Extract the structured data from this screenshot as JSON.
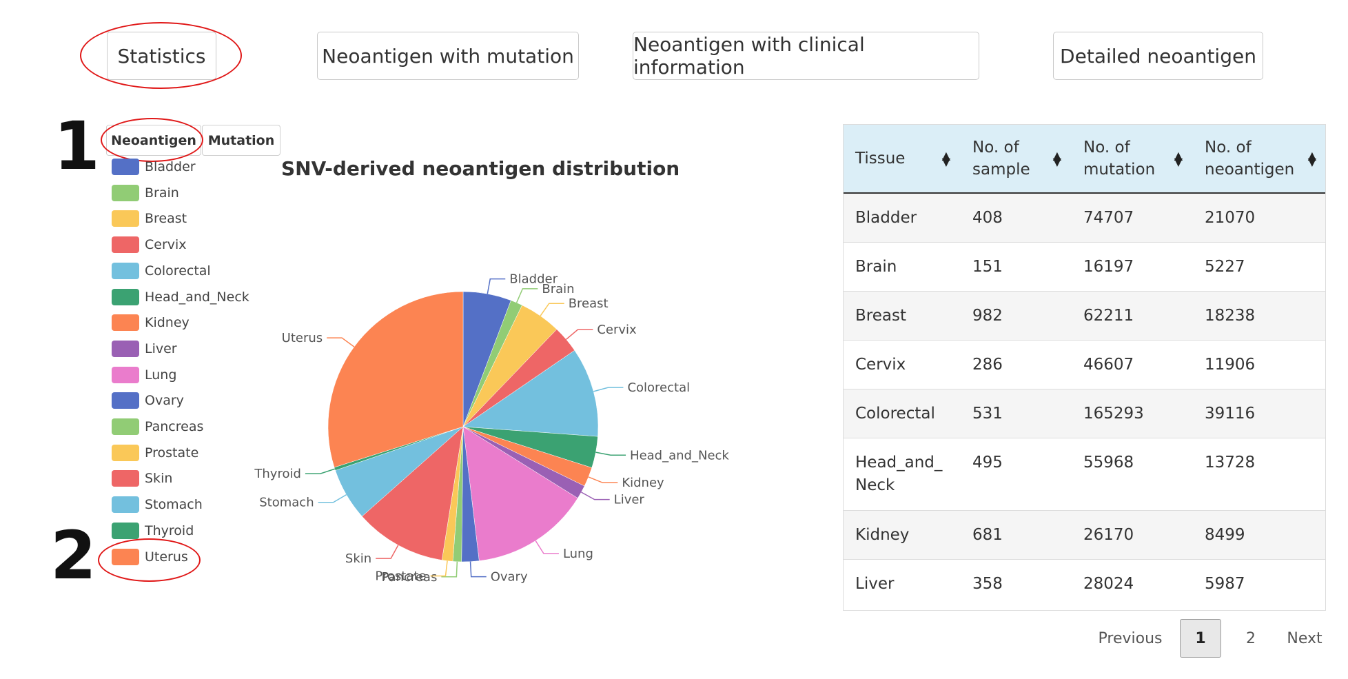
{
  "nav": {
    "buttons": [
      "Statistics",
      "Neoantigen with mutation",
      "Neoantigen with clinical information",
      "Detailed neoantigen"
    ]
  },
  "annotations": {
    "step1": "1",
    "step2": "2"
  },
  "subtabs": [
    "Neoantigen",
    "Mutation"
  ],
  "legend": [
    "Bladder",
    "Brain",
    "Breast",
    "Cervix",
    "Colorectal",
    "Head_and_Neck",
    "Kidney",
    "Liver",
    "Lung",
    "Ovary",
    "Pancreas",
    "Prostate",
    "Skin",
    "Stomach",
    "Thyroid",
    "Uterus"
  ],
  "colors": [
    "#5470c6",
    "#91cc75",
    "#fac858",
    "#ee6666",
    "#73c0de",
    "#3ba272",
    "#fc8452",
    "#9a60b4",
    "#ea7ccc",
    "#5470c6",
    "#91cc75",
    "#fac858",
    "#ee6666",
    "#73c0de",
    "#3ba272",
    "#fc8452"
  ],
  "chart_data": {
    "type": "pie",
    "title": "SNV-derived neoantigen distribution",
    "categories": [
      "Bladder",
      "Brain",
      "Breast",
      "Cervix",
      "Colorectal",
      "Head_and_Neck",
      "Kidney",
      "Liver",
      "Lung",
      "Ovary",
      "Pancreas",
      "Prostate",
      "Skin",
      "Stomach",
      "Thyroid",
      "Uterus"
    ],
    "values": [
      21070,
      5227,
      18238,
      11906,
      39116,
      13728,
      8499,
      5987,
      52000,
      7600,
      3800,
      4700,
      40000,
      23000,
      1400,
      109125
    ],
    "legend_position": "left"
  },
  "table": {
    "headers": [
      [
        "Tissue"
      ],
      [
        "No. of",
        "sample"
      ],
      [
        "No. of",
        "mutation"
      ],
      [
        "No. of",
        "neoantigen"
      ]
    ],
    "rows": [
      [
        "Bladder",
        "408",
        "74707",
        "21070"
      ],
      [
        "Brain",
        "151",
        "16197",
        "5227"
      ],
      [
        "Breast",
        "982",
        "62211",
        "18238"
      ],
      [
        "Cervix",
        "286",
        "46607",
        "11906"
      ],
      [
        "Colorectal",
        "531",
        "165293",
        "39116"
      ],
      [
        "Head_and_Neck",
        "495",
        "55968",
        "13728"
      ],
      [
        "Kidney",
        "681",
        "26170",
        "8499"
      ],
      [
        "Liver",
        "358",
        "28024",
        "5987"
      ]
    ]
  },
  "pagination": {
    "previous": "Previous",
    "pages": [
      "1",
      "2"
    ],
    "current": "1",
    "next": "Next"
  }
}
